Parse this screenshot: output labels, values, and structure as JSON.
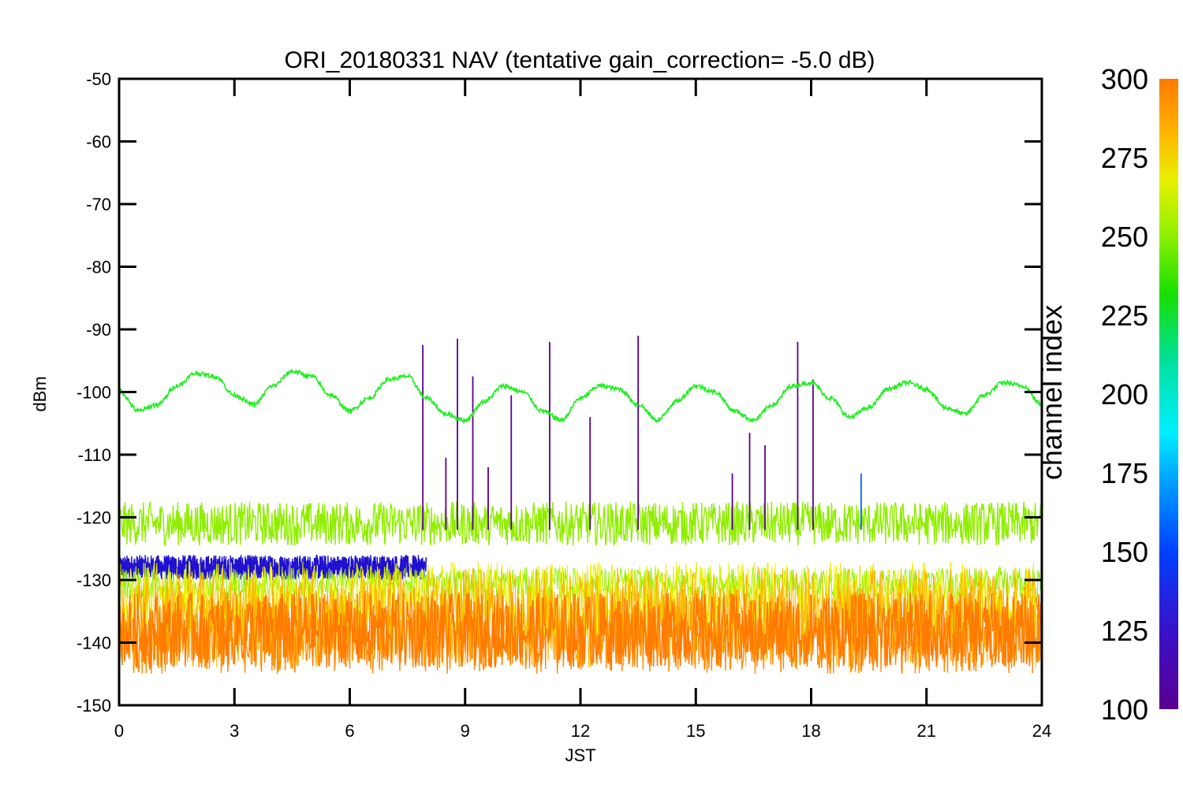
{
  "chart_data": {
    "type": "line",
    "title": "ORI_20180331 NAV (tentative gain_correction= -5.0 dB)",
    "xlabel": "JST",
    "ylabel": "dBm",
    "xlim": [
      0,
      24
    ],
    "ylim": [
      -150,
      -50
    ],
    "xticks": [
      0,
      3,
      6,
      9,
      12,
      15,
      18,
      21,
      24
    ],
    "yticks": [
      -50,
      -60,
      -70,
      -80,
      -90,
      -100,
      -110,
      -120,
      -130,
      -140,
      -150
    ],
    "grid": false,
    "colorbar": {
      "label": "channel index",
      "range": [
        100,
        300
      ],
      "ticks": [
        300,
        275,
        250,
        225,
        200,
        175,
        150,
        125,
        100
      ],
      "colors": [
        "#5a0090",
        "#3a10c8",
        "#0040ff",
        "#00a8ff",
        "#00f0ff",
        "#00e0a0",
        "#18e000",
        "#8ef000",
        "#e8f000",
        "#ffb000",
        "#ff7a00"
      ]
    },
    "series": [
      {
        "channel_index": 230,
        "color": "#22ee22",
        "description_points": [
          [
            0,
            -99.8
          ],
          [
            0.5,
            -103
          ],
          [
            1,
            -102
          ],
          [
            1.5,
            -99
          ],
          [
            2,
            -97
          ],
          [
            2.5,
            -97.5
          ],
          [
            3,
            -100.5
          ],
          [
            3.5,
            -102
          ],
          [
            4,
            -99
          ],
          [
            4.5,
            -96.7
          ],
          [
            5,
            -97.5
          ],
          [
            5.5,
            -100.5
          ],
          [
            6,
            -103
          ],
          [
            6.5,
            -101
          ],
          [
            7,
            -98
          ],
          [
            7.5,
            -97.5
          ],
          [
            8,
            -101
          ],
          [
            8.5,
            -103.5
          ],
          [
            9,
            -104.5
          ],
          [
            9.5,
            -101.5
          ],
          [
            10,
            -99
          ],
          [
            10.5,
            -100
          ],
          [
            11,
            -103
          ],
          [
            11.5,
            -104.5
          ],
          [
            12,
            -101
          ],
          [
            12.5,
            -99
          ],
          [
            13,
            -99.5
          ],
          [
            13.5,
            -102
          ],
          [
            14,
            -104.5
          ],
          [
            14.5,
            -101.5
          ],
          [
            15,
            -99
          ],
          [
            15.5,
            -100
          ],
          [
            16,
            -103
          ],
          [
            16.5,
            -104.5
          ],
          [
            17,
            -102
          ],
          [
            17.5,
            -99
          ],
          [
            18,
            -98.5
          ],
          [
            18.5,
            -101
          ],
          [
            19,
            -104
          ],
          [
            19.5,
            -102.5
          ],
          [
            20,
            -99.5
          ],
          [
            20.5,
            -98.5
          ],
          [
            21,
            -99.5
          ],
          [
            21.5,
            -102.5
          ],
          [
            22,
            -103.5
          ],
          [
            22.5,
            -100.5
          ],
          [
            23,
            -98.5
          ],
          [
            23.5,
            -99
          ],
          [
            24,
            -102
          ]
        ]
      },
      {
        "channel_index": 260,
        "color": "#90ee00",
        "band_center": -121,
        "band_halfwidth": 3.5
      },
      {
        "channel_index": 290,
        "color": "#ff8a00",
        "band_center": -138,
        "band_halfwidth": 7
      },
      {
        "channel_index": 135,
        "color": "#2010d0",
        "band_center": -128,
        "band_halfwidth": 2,
        "x_range": [
          0,
          8
        ]
      }
    ],
    "spikes": [
      {
        "x": 7.9,
        "y": -92.5,
        "color": "#5a0090"
      },
      {
        "x": 8.8,
        "y": -91.5,
        "color": "#5a0090"
      },
      {
        "x": 9.2,
        "y": -97.5,
        "color": "#5a0090"
      },
      {
        "x": 10.2,
        "y": -100.5,
        "color": "#5a0090"
      },
      {
        "x": 11.2,
        "y": -92.0,
        "color": "#5a0090"
      },
      {
        "x": 12.25,
        "y": -104.0,
        "color": "#5a0090"
      },
      {
        "x": 13.5,
        "y": -91.0,
        "color": "#5a0090"
      },
      {
        "x": 16.4,
        "y": -106.5,
        "color": "#5a0090"
      },
      {
        "x": 16.8,
        "y": -108.5,
        "color": "#5a0090"
      },
      {
        "x": 17.65,
        "y": -92.0,
        "color": "#5a0090"
      },
      {
        "x": 18.05,
        "y": -98.0,
        "color": "#5a0090"
      },
      {
        "x": 8.5,
        "y": -110.5,
        "color": "#5a0090"
      },
      {
        "x": 9.6,
        "y": -112.0,
        "color": "#5a0090"
      },
      {
        "x": 15.95,
        "y": -113.0,
        "color": "#5a0090"
      },
      {
        "x": 19.3,
        "y": -113.0,
        "color": "#0066ff"
      }
    ]
  }
}
